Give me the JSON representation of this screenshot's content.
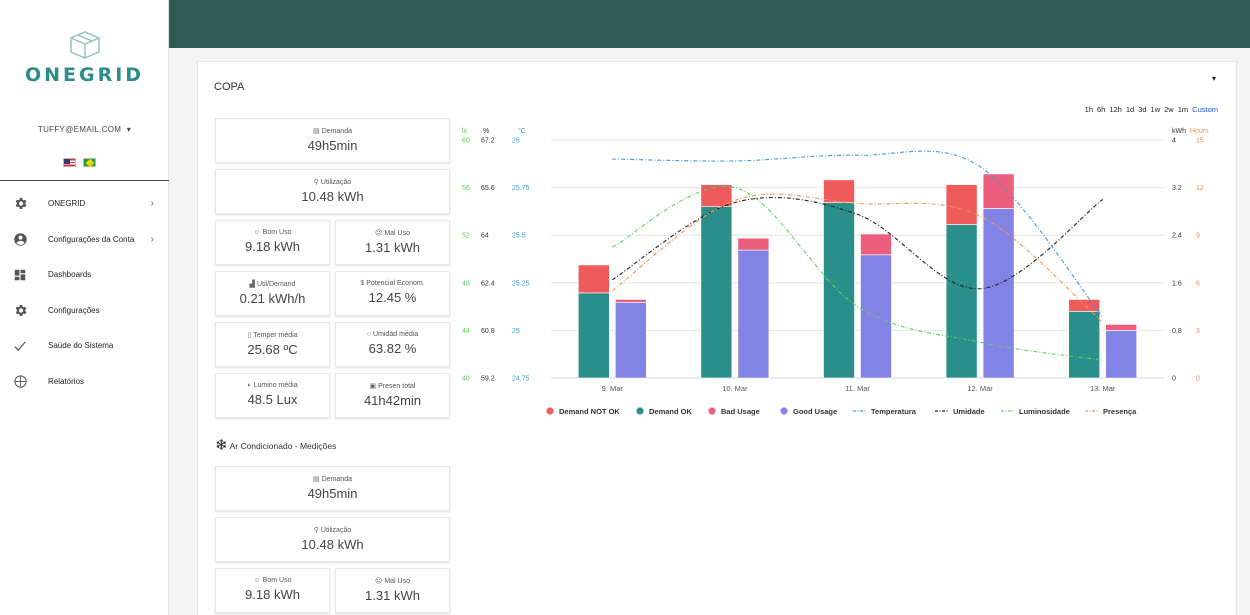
{
  "app": {
    "logo_text": "ONEGRID",
    "user_email": "TUFFY@EMAIL.COM",
    "user_caret": "▾"
  },
  "sidebar": {
    "items": [
      {
        "label": "ONEGRID",
        "icon": "gear-icon",
        "has_arrow": true
      },
      {
        "label": "Configurações da Conta",
        "icon": "account-icon",
        "has_arrow": true
      },
      {
        "label": "Dashboards",
        "icon": "dashboard-icon",
        "has_arrow": false
      },
      {
        "label": "Configurações",
        "icon": "gear-icon",
        "has_arrow": false
      },
      {
        "label": "Saúde do Sistema",
        "icon": "check-icon",
        "has_arrow": false
      },
      {
        "label": "Relatórios",
        "icon": "globe-icon",
        "has_arrow": false
      }
    ]
  },
  "card": {
    "title": "COPA",
    "caret": "▾",
    "time_ranges": [
      "1h",
      "6h",
      "12h",
      "1d",
      "3d",
      "1w",
      "2w",
      "1m",
      "Custom"
    ],
    "active_range": "Custom",
    "kpis": [
      {
        "label": "Demanda",
        "value": "49h5min",
        "icon": "calendar-icon"
      },
      {
        "label": "Utilização",
        "value": "10.48 kWh",
        "icon": "plug-icon"
      },
      {
        "label": "Bom Uso",
        "value": "9.18 kWh",
        "icon": "smile-icon"
      },
      {
        "label": "Mal Uso",
        "value": "1.31 kWh",
        "icon": "frown-icon"
      },
      {
        "label": "Util/Demand",
        "value": "0.21 kWh/h",
        "icon": "bar-chart-icon"
      },
      {
        "label": "Potencial Econom.",
        "value": "12.45 %",
        "icon": "dollar-icon"
      },
      {
        "label": "Temper média",
        "value": "25.68 ºC",
        "icon": "thermometer-icon"
      },
      {
        "label": "Umidad média",
        "value": "63.82 %",
        "icon": "drop-icon"
      },
      {
        "label": "Lumino média",
        "value": "48.5 Lux",
        "icon": "brightness-icon"
      },
      {
        "label": "Presen total",
        "value": "41h42min",
        "icon": "presence-icon"
      }
    ],
    "section2": {
      "title": "Ar Condicionado - Medições",
      "kpis": [
        {
          "label": "Demanda",
          "value": "49h5min",
          "icon": "calendar-icon"
        },
        {
          "label": "Utilização",
          "value": "10.48 kWh",
          "icon": "plug-icon"
        },
        {
          "label": "Bom Uso",
          "value": "9.18 kWh",
          "icon": "smile-icon"
        },
        {
          "label": "Mal Uso",
          "value": "1.31 kWh",
          "icon": "frown-icon"
        }
      ]
    }
  },
  "colors": {
    "topbar": "#2f5a56",
    "demand_not_ok": "#ef5b5b",
    "demand_ok": "#2a8e8a",
    "bad_usage": "#ec5f7e",
    "good_usage": "#8383e5",
    "temperatura": "#3d9be0",
    "umidade": "#222222",
    "luminosidade": "#59d359",
    "presenca": "#f0955a"
  },
  "chart_data": {
    "type": "bar",
    "categories": [
      "9. Mar",
      "10. Mar",
      "11. Mar",
      "12. Mar",
      "13. Mar"
    ],
    "axes": {
      "lux": {
        "unit": "lux",
        "ticks": [
          "40",
          "44",
          "48",
          "52",
          "56",
          "60"
        ]
      },
      "humidity": {
        "unit": "%",
        "ticks": [
          "59.2",
          "60.8",
          "62.4",
          "64",
          "65.6",
          "67.2"
        ]
      },
      "temperature": {
        "unit": "°C",
        "ticks": [
          "24.75",
          "25",
          "25.25",
          "25.5",
          "25.75",
          "26"
        ]
      },
      "energy": {
        "unit": "kWh",
        "ticks": [
          "0",
          "0.8",
          "1.6",
          "2.4",
          "3.2",
          "4"
        ],
        "ylim": [
          0,
          4
        ]
      },
      "hours": {
        "unit": "Hours",
        "ticks": [
          "0",
          "3",
          "6",
          "9",
          "12",
          "15"
        ],
        "ylim": [
          0,
          15
        ]
      }
    },
    "stacks": [
      {
        "name": "Demand NOT OK",
        "stack": "demand",
        "values": [
          0.47,
          0.37,
          0.38,
          0.67,
          0.2
        ]
      },
      {
        "name": "Demand OK",
        "stack": "demand",
        "values": [
          1.43,
          2.88,
          2.95,
          2.58,
          1.12
        ]
      },
      {
        "name": "Bad Usage",
        "stack": "usage",
        "values": [
          0.05,
          0.2,
          0.35,
          0.58,
          0.1
        ]
      },
      {
        "name": "Good Usage",
        "stack": "usage",
        "values": [
          1.27,
          2.15,
          2.07,
          2.85,
          0.8
        ]
      }
    ],
    "lines": [
      {
        "name": "Temperatura",
        "axis": "temperature",
        "values": [
          25.9,
          25.89,
          25.92,
          25.86,
          25.07
        ]
      },
      {
        "name": "Umidade",
        "axis": "humidity",
        "values": [
          62.5,
          65.1,
          64.7,
          62.2,
          65.2
        ]
      },
      {
        "name": "Luminosidade",
        "axis": "lux",
        "values": [
          51,
          56,
          46,
          43,
          41.5
        ]
      },
      {
        "name": "Presença",
        "axis": "hours",
        "values": [
          5.5,
          11.2,
          11.0,
          10.2,
          3.5
        ]
      }
    ],
    "legend": [
      "Demand NOT OK",
      "Demand OK",
      "Bad Usage",
      "Good Usage",
      "Temperatura",
      "Umidade",
      "Luminosidade",
      "Presença"
    ],
    "legend_position": "bottom",
    "grid": true
  }
}
